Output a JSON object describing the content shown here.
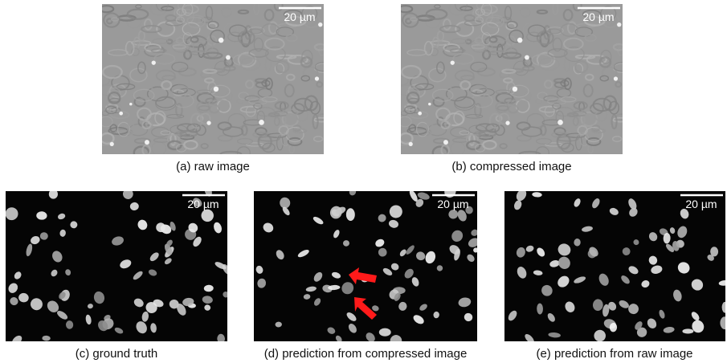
{
  "panels": [
    {
      "caption": "(a) raw image",
      "scale_bar": "20 µm"
    },
    {
      "caption": "(b) compressed image",
      "scale_bar": "20 µm"
    },
    {
      "caption": "(c) ground truth",
      "scale_bar": "20 µm"
    },
    {
      "caption": "(d) prediction from compressed image",
      "scale_bar": "20 µm"
    },
    {
      "caption": "(e) prediction from raw image",
      "scale_bar": "20 µm"
    }
  ]
}
